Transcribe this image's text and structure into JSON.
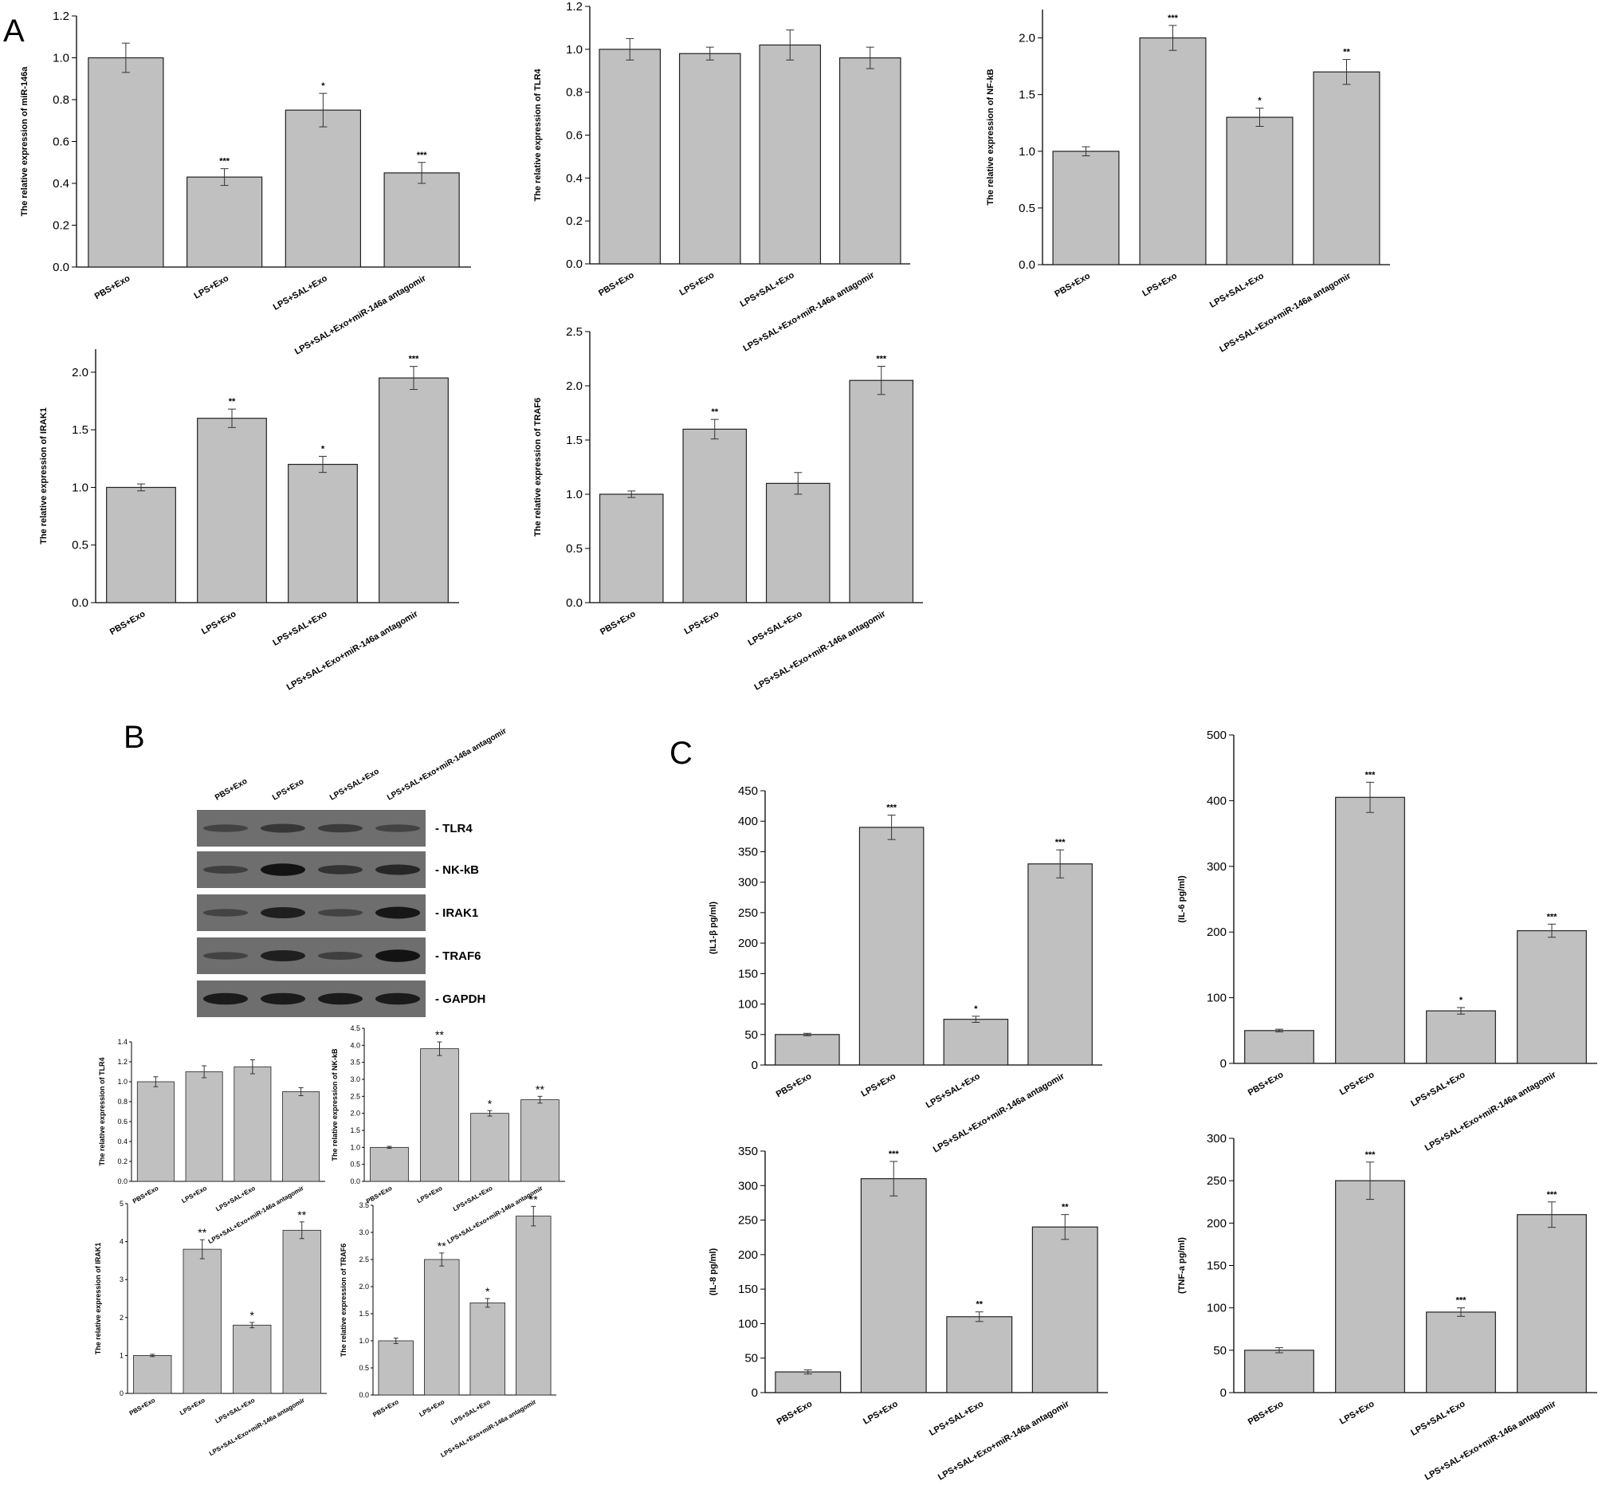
{
  "panels": {
    "a": "A",
    "b": "B",
    "c": "C"
  },
  "categories": [
    "PBS+Exo",
    "LPS+Exo",
    "LPS+SAL+Exo",
    "LPS+SAL+Exo+miR-146a antagomir"
  ],
  "blot": {
    "lanes": [
      "PBS+Exo",
      "LPS+Exo",
      "LPS+SAL+Exo",
      "LPS+SAL+Exo+miR-146a antagomir"
    ],
    "rows": [
      {
        "label": "TLR4",
        "intensity": [
          0.35,
          0.5,
          0.45,
          0.35
        ]
      },
      {
        "label": "NK-kB",
        "intensity": [
          0.4,
          0.95,
          0.55,
          0.7
        ]
      },
      {
        "label": "IRAK1",
        "intensity": [
          0.35,
          0.8,
          0.35,
          0.9
        ]
      },
      {
        "label": "TRAF6",
        "intensity": [
          0.35,
          0.8,
          0.4,
          0.95
        ]
      },
      {
        "label": "GAPDH",
        "intensity": [
          0.85,
          0.85,
          0.85,
          0.85
        ]
      }
    ]
  },
  "chart_data": [
    {
      "id": "A1",
      "type": "bar",
      "ylabel": "The relative expression of miR-146a",
      "categories": [
        "PBS+Exo",
        "LPS+Exo",
        "LPS+SAL+Exo",
        "LPS+SAL+Exo+miR-146a antagomir"
      ],
      "values": [
        1.0,
        0.43,
        0.75,
        0.45
      ],
      "errors": [
        0.07,
        0.04,
        0.08,
        0.05
      ],
      "significance": [
        "",
        "***",
        "*",
        "***"
      ],
      "ylim": [
        0,
        1.2
      ],
      "yticks": [
        "0.0",
        "0.2",
        "0.4",
        "0.6",
        "0.8",
        "1.0",
        "1.2"
      ]
    },
    {
      "id": "A2",
      "type": "bar",
      "ylabel": "The relative expression of TLR4",
      "categories": [
        "PBS+Exo",
        "LPS+Exo",
        "LPS+SAL+Exo",
        "LPS+SAL+Exo+miR-146a antagomir"
      ],
      "values": [
        1.0,
        0.98,
        1.02,
        0.96
      ],
      "errors": [
        0.05,
        0.03,
        0.07,
        0.05
      ],
      "significance": [
        "",
        "",
        "",
        ""
      ],
      "ylim": [
        0,
        1.2
      ],
      "yticks": [
        "0.0",
        "0.2",
        "0.4",
        "0.6",
        "0.8",
        "1.0",
        "1.2"
      ]
    },
    {
      "id": "A3",
      "type": "bar",
      "ylabel": "The relative expression of NF-kB",
      "categories": [
        "PBS+Exo",
        "LPS+Exo",
        "LPS+SAL+Exo",
        "LPS+SAL+Exo+miR-146a antagomir"
      ],
      "values": [
        1.0,
        2.0,
        1.3,
        1.7
      ],
      "errors": [
        0.04,
        0.11,
        0.08,
        0.11
      ],
      "significance": [
        "",
        "***",
        "*",
        "**"
      ],
      "ylim": [
        0,
        2.25
      ],
      "yticks": [
        "0.0",
        "0.5",
        "1.0",
        "1.5",
        "2.0"
      ]
    },
    {
      "id": "A4",
      "type": "bar",
      "ylabel": "The relative expression of IRAK1",
      "categories": [
        "PBS+Exo",
        "LPS+Exo",
        "LPS+SAL+Exo",
        "LPS+SAL+Exo+miR-146a antagomir"
      ],
      "values": [
        1.0,
        1.6,
        1.2,
        1.95
      ],
      "errors": [
        0.03,
        0.08,
        0.07,
        0.1
      ],
      "significance": [
        "",
        "**",
        "*",
        "***"
      ],
      "ylim": [
        0,
        2.2
      ],
      "yticks": [
        "0.0",
        "0.5",
        "1.0",
        "1.5",
        "2.0"
      ]
    },
    {
      "id": "A5",
      "type": "bar",
      "ylabel": "The relative expression of TRAF6",
      "categories": [
        "PBS+Exo",
        "LPS+Exo",
        "LPS+SAL+Exo",
        "LPS+SAL+Exo+miR-146a antagomir"
      ],
      "values": [
        1.0,
        1.6,
        1.1,
        2.05
      ],
      "errors": [
        0.03,
        0.09,
        0.1,
        0.13
      ],
      "significance": [
        "",
        "**",
        "",
        "***"
      ],
      "ylim": [
        0,
        2.5
      ],
      "yticks": [
        "0.0",
        "0.5",
        "1.0",
        "1.5",
        "2.0",
        "2.5"
      ]
    },
    {
      "id": "B1",
      "type": "bar",
      "ylabel": "The relative expression of TLR4",
      "categories": [
        "PBS+Exo",
        "LPS+Exo",
        "LPS+SAL+Exo",
        "LPS+SAL+Exo+miR-146a antagomir"
      ],
      "values": [
        1.0,
        1.1,
        1.15,
        0.9
      ],
      "errors": [
        0.05,
        0.06,
        0.07,
        0.04
      ],
      "significance": [
        "",
        "",
        "",
        ""
      ],
      "ylim": [
        0,
        1.4
      ],
      "yticks": [
        "0.0",
        "0.2",
        "0.4",
        "0.6",
        "0.8",
        "1.0",
        "1.2",
        "1.4"
      ]
    },
    {
      "id": "B2",
      "type": "bar",
      "ylabel": "The relative expression of NK-kB",
      "categories": [
        "PBS+Exo",
        "LPS+Exo",
        "LPS+SAL+Exo",
        "LPS+SAL+Exo+miR-146a antagomir"
      ],
      "values": [
        1.0,
        3.9,
        2.0,
        2.4
      ],
      "errors": [
        0.03,
        0.2,
        0.08,
        0.1
      ],
      "significance": [
        "",
        "**",
        "*",
        "**"
      ],
      "ylim": [
        0,
        4.5
      ],
      "yticks": [
        "0.0",
        "0.5",
        "1.0",
        "1.5",
        "2.0",
        "2.5",
        "3.0",
        "3.5",
        "4.0",
        "4.5"
      ]
    },
    {
      "id": "B3",
      "type": "bar",
      "ylabel": "The relative expression of IRAK1",
      "categories": [
        "PBS+Exo",
        "LPS+Exo",
        "LPS+SAL+Exo",
        "LPS+SAL+Exo+miR-146a antagomir"
      ],
      "values": [
        1.0,
        3.8,
        1.8,
        4.3
      ],
      "errors": [
        0.03,
        0.25,
        0.07,
        0.22
      ],
      "significance": [
        "",
        "**",
        "*",
        "**"
      ],
      "ylim": [
        0,
        5
      ],
      "yticks": [
        "0",
        "1",
        "2",
        "3",
        "4",
        "5"
      ]
    },
    {
      "id": "B4",
      "type": "bar",
      "ylabel": "The relative expression of TRAF6",
      "categories": [
        "PBS+Exo",
        "LPS+Exo",
        "LPS+SAL+Exo",
        "LPS+SAL+Exo+miR-146a antagomir"
      ],
      "values": [
        1.0,
        2.5,
        1.7,
        3.3
      ],
      "errors": [
        0.05,
        0.12,
        0.08,
        0.18
      ],
      "significance": [
        "",
        "**",
        "*",
        "**"
      ],
      "ylim": [
        0,
        3.5
      ],
      "yticks": [
        "0.0",
        "0.5",
        "1.0",
        "1.5",
        "2.0",
        "2.5",
        "3.0",
        "3.5"
      ]
    },
    {
      "id": "C1",
      "type": "bar",
      "ylabel": "(IL1-β pg/ml)",
      "categories": [
        "PBS+Exo",
        "LPS+Exo",
        "LPS+SAL+Exo",
        "LPS+SAL+Exo+miR-146a antagomir"
      ],
      "values": [
        50,
        390,
        75,
        330
      ],
      "errors": [
        2,
        20,
        5,
        23
      ],
      "significance": [
        "",
        "***",
        "*",
        "***"
      ],
      "ylim": [
        0,
        450
      ],
      "yticks": [
        "0",
        "50",
        "100",
        "150",
        "200",
        "250",
        "300",
        "350",
        "400",
        "450"
      ]
    },
    {
      "id": "C2",
      "type": "bar",
      "ylabel": "(IL-6 pg/ml)",
      "categories": [
        "PBS+Exo",
        "LPS+Exo",
        "LPS+SAL+Exo",
        "LPS+SAL+Exo+miR-146a antagomir"
      ],
      "values": [
        50,
        405,
        80,
        202
      ],
      "errors": [
        2,
        23,
        5,
        10
      ],
      "significance": [
        "",
        "***",
        "*",
        "***"
      ],
      "ylim": [
        0,
        500
      ],
      "yticks": [
        "0",
        "100",
        "200",
        "300",
        "400",
        "500"
      ]
    },
    {
      "id": "C3",
      "type": "bar",
      "ylabel": "(IL-8 pg/ml)",
      "categories": [
        "PBS+Exo",
        "LPS+Exo",
        "LPS+SAL+Exo",
        "LPS+SAL+Exo+miR-146a antagomir"
      ],
      "values": [
        30,
        310,
        110,
        240
      ],
      "errors": [
        3,
        25,
        7,
        18
      ],
      "significance": [
        "",
        "***",
        "**",
        "**"
      ],
      "ylim": [
        0,
        350
      ],
      "yticks": [
        "0",
        "50",
        "100",
        "150",
        "200",
        "250",
        "300",
        "350"
      ]
    },
    {
      "id": "C4",
      "type": "bar",
      "ylabel": "(TNF-a pg/ml)",
      "categories": [
        "PBS+Exo",
        "LPS+Exo",
        "LPS+SAL+Exo",
        "LPS+SAL+Exo+miR-146a antagomir"
      ],
      "values": [
        50,
        250,
        95,
        210
      ],
      "errors": [
        3,
        22,
        5,
        15
      ],
      "significance": [
        "",
        "***",
        "***",
        "***"
      ],
      "ylim": [
        0,
        300
      ],
      "yticks": [
        "0",
        "50",
        "100",
        "150",
        "200",
        "250",
        "300"
      ]
    }
  ]
}
